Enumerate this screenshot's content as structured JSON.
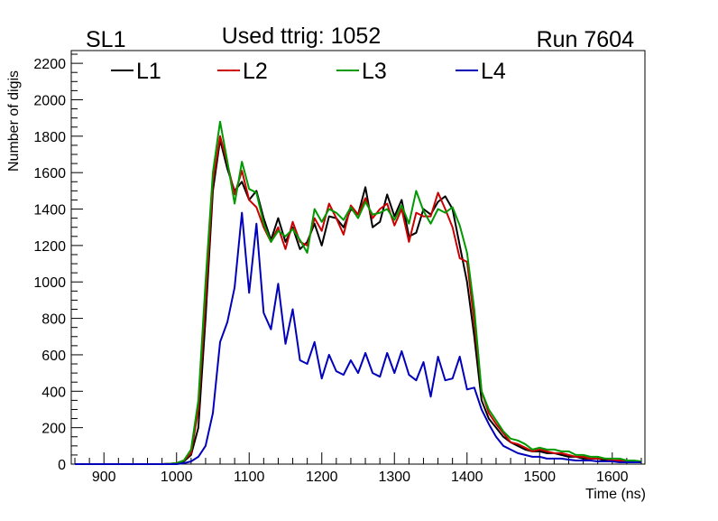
{
  "header": {
    "left": "SL1",
    "center": "Used ttrig: 1052",
    "right": "Run 7604"
  },
  "chart_data": {
    "type": "line",
    "xlabel": "Time (ns)",
    "ylabel": "Number of digis",
    "xlim": [
      855,
      1645
    ],
    "ylim": [
      0,
      2270
    ],
    "x_ticks": [
      900,
      1000,
      1100,
      1200,
      1300,
      1400,
      1500,
      1600
    ],
    "y_ticks": [
      0,
      200,
      400,
      600,
      800,
      1000,
      1200,
      1400,
      1600,
      1800,
      2000,
      2200
    ],
    "grid": false,
    "legend_position": "top-left",
    "x": [
      860,
      870,
      880,
      890,
      900,
      910,
      920,
      930,
      940,
      950,
      960,
      970,
      980,
      990,
      1000,
      1010,
      1020,
      1030,
      1040,
      1050,
      1060,
      1070,
      1080,
      1090,
      1100,
      1110,
      1120,
      1130,
      1140,
      1150,
      1160,
      1170,
      1180,
      1190,
      1200,
      1210,
      1220,
      1230,
      1240,
      1250,
      1260,
      1270,
      1280,
      1290,
      1300,
      1310,
      1320,
      1330,
      1340,
      1350,
      1360,
      1370,
      1380,
      1390,
      1400,
      1410,
      1420,
      1430,
      1440,
      1450,
      1460,
      1470,
      1480,
      1490,
      1500,
      1510,
      1520,
      1530,
      1540,
      1550,
      1560,
      1570,
      1580,
      1590,
      1600,
      1610,
      1620,
      1630,
      1640
    ],
    "series": [
      {
        "name": "L1",
        "color": "#000000",
        "values": [
          0,
          0,
          0,
          0,
          0,
          0,
          0,
          0,
          0,
          0,
          0,
          0,
          0,
          2,
          5,
          15,
          50,
          200,
          800,
          1500,
          1780,
          1620,
          1500,
          1550,
          1450,
          1500,
          1350,
          1230,
          1350,
          1220,
          1300,
          1180,
          1220,
          1320,
          1200,
          1360,
          1350,
          1300,
          1400,
          1370,
          1520,
          1300,
          1330,
          1480,
          1360,
          1450,
          1250,
          1270,
          1400,
          1370,
          1440,
          1470,
          1400,
          1200,
          1000,
          700,
          350,
          250,
          200,
          150,
          120,
          100,
          80,
          70,
          70,
          60,
          60,
          50,
          40,
          40,
          30,
          30,
          30,
          20,
          20,
          20,
          15,
          15,
          10
        ]
      },
      {
        "name": "L2",
        "color": "#cc0000",
        "values": [
          0,
          0,
          0,
          0,
          0,
          0,
          0,
          0,
          0,
          0,
          0,
          0,
          0,
          2,
          5,
          20,
          60,
          300,
          900,
          1550,
          1800,
          1650,
          1480,
          1610,
          1450,
          1410,
          1300,
          1220,
          1300,
          1180,
          1330,
          1220,
          1200,
          1350,
          1280,
          1430,
          1350,
          1260,
          1420,
          1370,
          1460,
          1350,
          1400,
          1430,
          1310,
          1400,
          1220,
          1380,
          1360,
          1360,
          1490,
          1400,
          1300,
          1130,
          1110,
          780,
          400,
          280,
          220,
          170,
          120,
          110,
          90,
          70,
          80,
          70,
          60,
          60,
          50,
          40,
          40,
          30,
          30,
          30,
          20,
          20,
          20,
          15,
          10
        ]
      },
      {
        "name": "L3",
        "color": "#009900",
        "values": [
          0,
          0,
          0,
          0,
          0,
          0,
          0,
          0,
          0,
          0,
          0,
          0,
          0,
          2,
          5,
          20,
          80,
          350,
          1000,
          1600,
          1880,
          1660,
          1430,
          1660,
          1510,
          1490,
          1320,
          1220,
          1280,
          1250,
          1290,
          1230,
          1160,
          1400,
          1330,
          1400,
          1380,
          1340,
          1410,
          1350,
          1440,
          1370,
          1380,
          1400,
          1340,
          1420,
          1320,
          1500,
          1390,
          1320,
          1400,
          1380,
          1410,
          1310,
          1160,
          850,
          400,
          300,
          240,
          180,
          140,
          130,
          110,
          80,
          90,
          80,
          80,
          70,
          70,
          50,
          50,
          40,
          40,
          30,
          30,
          30,
          20,
          20,
          15
        ]
      },
      {
        "name": "L4",
        "color": "#0000bb",
        "values": [
          0,
          0,
          0,
          0,
          0,
          0,
          0,
          0,
          0,
          0,
          0,
          0,
          0,
          0,
          0,
          5,
          15,
          40,
          100,
          280,
          670,
          780,
          970,
          1380,
          940,
          1320,
          830,
          740,
          990,
          660,
          850,
          570,
          550,
          670,
          470,
          600,
          510,
          490,
          570,
          500,
          610,
          500,
          480,
          610,
          500,
          620,
          490,
          460,
          560,
          370,
          590,
          460,
          470,
          590,
          410,
          420,
          300,
          220,
          150,
          100,
          80,
          60,
          50,
          40,
          40,
          30,
          30,
          30,
          25,
          20,
          20,
          20,
          15,
          15,
          15,
          10,
          10,
          10,
          10
        ]
      }
    ]
  }
}
